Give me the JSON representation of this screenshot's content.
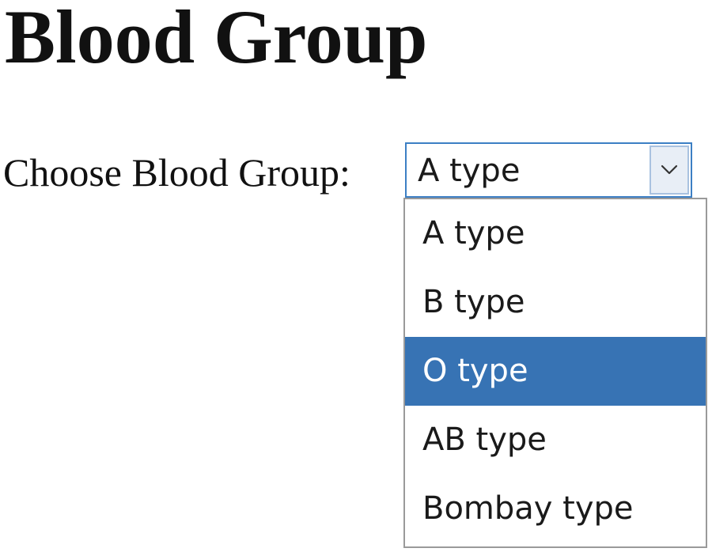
{
  "page": {
    "title": "Blood Group"
  },
  "form": {
    "label": "Choose Blood Group:",
    "select": {
      "selected_value": "A type",
      "arrow_icon": "chevron-down-icon",
      "options": [
        {
          "label": "A type",
          "highlighted": false
        },
        {
          "label": "B type",
          "highlighted": false
        },
        {
          "label": "O type",
          "highlighted": true
        },
        {
          "label": "AB type",
          "highlighted": false
        },
        {
          "label": "Bombay type",
          "highlighted": false
        }
      ]
    }
  },
  "colors": {
    "select_border": "#3c7fc4",
    "highlight_background": "#3773b4",
    "highlight_text": "#ffffff",
    "list_border": "#9a9a9a"
  }
}
